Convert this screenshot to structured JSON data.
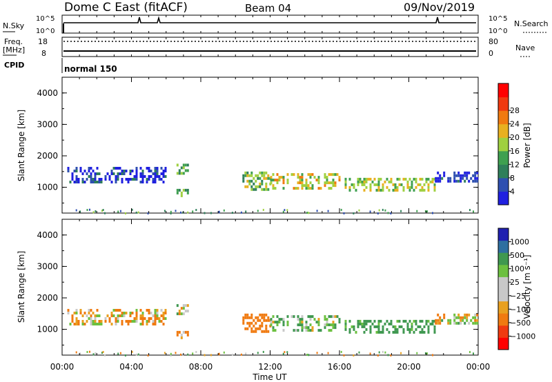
{
  "header": {
    "station": "Dome C East (fitACF)",
    "beam": "Beam 04",
    "date": "09/Nov/2019"
  },
  "status_panel": {
    "nsky_label": "N.Sky",
    "nsky_ticks": [
      "10^5",
      "10^0"
    ],
    "nsearch_label": "N.Search",
    "nsearch_ticks": [
      "10^5",
      "10^0"
    ],
    "freq_label_1": "Freq.",
    "freq_label_2": "[MHz]",
    "freq_ticks": [
      "18",
      "8"
    ],
    "nave_label": "Nave",
    "nave_ticks": [
      "80",
      "0"
    ],
    "cpid_label": "CPID",
    "cpid_value": "normal 150"
  },
  "colors": {
    "power": [
      "#2020e0",
      "#2e4fb0",
      "#2f7f5a",
      "#3fa050",
      "#9fd040",
      "#e8b020",
      "#f07a10",
      "#f03a10",
      "#ff0000"
    ],
    "velocity": [
      "#ff0000",
      "#f03a10",
      "#f07a10",
      "#e8a020",
      "#c8c8c8",
      "#c8c8c8",
      "#6cc040",
      "#3f9850",
      "#2e6fa0",
      "#2020b0"
    ]
  },
  "chart_data": [
    {
      "type": "heatmap",
      "panel": "power",
      "ylabel": "Slant Range [km]",
      "ylim": [
        180,
        4500
      ],
      "yticks": [
        "1000",
        "2000",
        "3000",
        "4000"
      ],
      "xlim": [
        0,
        24
      ],
      "colorbar": {
        "label": "Power [dB]",
        "ticks": [
          "4",
          "8",
          "12",
          "16",
          "20",
          "24",
          "28"
        ],
        "range": [
          0,
          30
        ]
      },
      "regions": [
        {
          "t": [
            0.3,
            6.0
          ],
          "r": [
            1150,
            1650
          ],
          "value": 4
        },
        {
          "t": [
            6.6,
            7.2
          ],
          "r": [
            1450,
            1750
          ],
          "value": 14
        },
        {
          "t": [
            6.6,
            7.2
          ],
          "r": [
            700,
            950
          ],
          "value": 14
        },
        {
          "t": [
            10.4,
            12.0
          ],
          "r": [
            900,
            1500
          ],
          "value": 16
        },
        {
          "t": [
            12.0,
            16.0
          ],
          "r": [
            1000,
            1450
          ],
          "value": 20
        },
        {
          "t": [
            16.3,
            21.5
          ],
          "r": [
            900,
            1300
          ],
          "value": 18
        },
        {
          "t": [
            21.5,
            24.0
          ],
          "r": [
            1150,
            1500
          ],
          "value": 4
        }
      ]
    },
    {
      "type": "heatmap",
      "panel": "velocity",
      "ylabel": "Slant Range [km]",
      "ylim": [
        180,
        4500
      ],
      "yticks": [
        "1000",
        "2000",
        "3000",
        "4000"
      ],
      "xlim": [
        0,
        24
      ],
      "xticks": [
        "00:00",
        "04:00",
        "08:00",
        "12:00",
        "16:00",
        "20:00",
        "00:00"
      ],
      "xlabel": "Time UT",
      "colorbar": {
        "label": "Velocity [m s⁻¹]",
        "ticks": [
          "1000",
          "500",
          "100",
          "25",
          "−25",
          "−100",
          "−500",
          "−1000"
        ]
      },
      "regions": [
        {
          "t": [
            0.3,
            6.0
          ],
          "r": [
            1150,
            1650
          ],
          "value": -50
        },
        {
          "t": [
            6.6,
            7.2
          ],
          "r": [
            1450,
            1800
          ],
          "value": 0
        },
        {
          "t": [
            6.6,
            7.2
          ],
          "r": [
            700,
            950
          ],
          "value": -150
        },
        {
          "t": [
            10.4,
            12.0
          ],
          "r": [
            900,
            1500
          ],
          "value": -300
        },
        {
          "t": [
            12.0,
            16.0
          ],
          "r": [
            1000,
            1450
          ],
          "value": 100
        },
        {
          "t": [
            16.3,
            21.5
          ],
          "r": [
            900,
            1300
          ],
          "value": 200
        },
        {
          "t": [
            21.5,
            24.0
          ],
          "r": [
            1150,
            1500
          ],
          "value": 0
        }
      ]
    }
  ]
}
